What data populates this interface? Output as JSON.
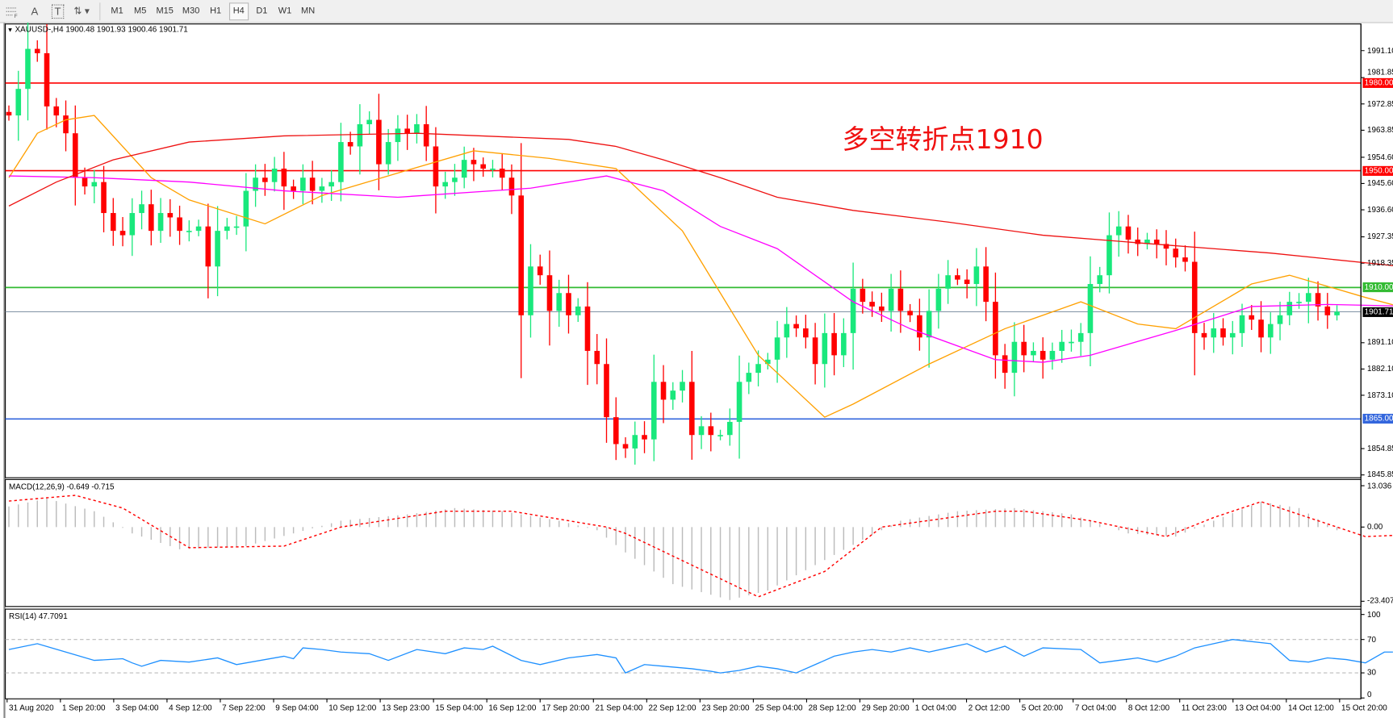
{
  "toolbar": {
    "tools": [
      {
        "icon": "fibonacci-fan-icon"
      },
      {
        "icon": "text-icon",
        "label": "A"
      },
      {
        "icon": "text-label-icon",
        "label": "T"
      },
      {
        "icon": "arrows-icon"
      }
    ],
    "timeframes": [
      "M1",
      "M5",
      "M15",
      "M30",
      "H1",
      "H4",
      "D1",
      "W1",
      "MN"
    ],
    "active_timeframe": "H4"
  },
  "chart_header": "XAUUSD-,H4  1900.48 1901.93 1900.46 1901.71",
  "annotation": "多空转折点1910",
  "colors": {
    "bull": "#19e87c",
    "bear": "#ff0000",
    "ma_fast": "#ffa000",
    "ma_mid": "#ff00ff",
    "ma_slow": "#ee1111",
    "macd_hist": "#bbbbbb",
    "macd_signal": "#ff0000",
    "rsi": "#1e90ff"
  },
  "chart_data": [
    {
      "type": "candlestick",
      "symbol": "XAUUSD-",
      "timeframe": "H4",
      "ylim": [
        1845.85,
        1995
      ],
      "y_ticks": [
        "1991.10",
        "1981.85",
        "1972.85",
        "1963.85",
        "1954.60",
        "1945.60",
        "1936.60",
        "1927.35",
        "1918.35",
        "1891.10",
        "1882.10",
        "1873.10",
        "1854.85",
        "1845.85"
      ],
      "x_ticks": [
        "31 Aug 2020",
        "1 Sep 20:00",
        "3 Sep 04:00",
        "4 Sep 12:00",
        "7 Sep 22:00",
        "9 Sep 04:00",
        "10 Sep 12:00",
        "13 Sep 23:00",
        "15 Sep 04:00",
        "16 Sep 12:00",
        "17 Sep 20:00",
        "21 Sep 04:00",
        "22 Sep 12:00",
        "23 Sep 20:00",
        "25 Sep 04:00",
        "28 Sep 12:00",
        "29 Sep 20:00",
        "1 Oct 04:00",
        "2 Oct 12:00",
        "5 Oct 20:00",
        "7 Oct 04:00",
        "8 Oct 12:00",
        "11 Oct 23:00",
        "13 Oct 04:00",
        "14 Oct 12:00",
        "15 Oct 20:00"
      ],
      "last_ohlc": {
        "open": 1900.48,
        "high": 1901.93,
        "low": 1900.46,
        "close": 1901.71
      },
      "current_price": "1901.71",
      "closes": [
        1968.9,
        1978.0,
        1991.7,
        1990.2,
        1972.0,
        1968.9,
        1962.8,
        1947.6,
        1944.6,
        1946.1,
        1935.5,
        1929.4,
        1927.9,
        1935.5,
        1938.5,
        1929.4,
        1935.5,
        1934.0,
        1929.4,
        1929.4,
        1930.9,
        1917.2,
        1929.4,
        1930.9,
        1930.9,
        1943.1,
        1947.6,
        1946.1,
        1950.7,
        1944.6,
        1943.1,
        1947.6,
        1943.1,
        1944.6,
        1946.1,
        1959.8,
        1958.3,
        1965.9,
        1967.4,
        1952.2,
        1959.8,
        1964.4,
        1962.8,
        1965.9,
        1958.3,
        1944.6,
        1946.1,
        1947.6,
        1953.7,
        1952.2,
        1950.7,
        1950.7,
        1947.6,
        1941.5,
        1900.5,
        1917.2,
        1914.2,
        1902.0,
        1908.1,
        1900.5,
        1903.5,
        1888.3,
        1883.8,
        1865.6,
        1856.4,
        1854.9,
        1859.5,
        1858.0,
        1877.7,
        1871.6,
        1874.7,
        1877.7,
        1859.5,
        1862.5,
        1859.5,
        1859.5,
        1864.0,
        1877.7,
        1880.8,
        1883.8,
        1885.3,
        1892.9,
        1897.5,
        1896.0,
        1892.9,
        1883.8,
        1894.4,
        1886.8,
        1894.4,
        1909.6,
        1905.1,
        1903.5,
        1902.0,
        1909.6,
        1902.0,
        1900.5,
        1892.9,
        1902.0,
        1909.6,
        1914.2,
        1912.7,
        1911.2,
        1917.2,
        1905.1,
        1886.8,
        1880.8,
        1891.4,
        1886.8,
        1888.3,
        1885.3,
        1888.3,
        1891.4,
        1891.4,
        1894.4,
        1911.2,
        1914.2,
        1927.9,
        1930.9,
        1926.4,
        1924.9,
        1926.4,
        1924.9,
        1923.3,
        1920.3,
        1918.8,
        1894.4,
        1892.9,
        1896.0,
        1892.9,
        1894.4,
        1900.5,
        1899.0,
        1892.9,
        1897.5,
        1900.5,
        1905.1,
        1905.1,
        1908.1,
        1903.5,
        1900.5,
        1901.71
      ],
      "moving_averages": [
        {
          "color_key": "ma_fast",
          "points": [
            [
              0,
              1947.6
            ],
            [
              3,
              1962.8
            ],
            [
              6,
              1967.4
            ],
            [
              9,
              1968.9
            ],
            [
              15,
              1947.6
            ],
            [
              19,
              1940.0
            ],
            [
              27,
              1931.8
            ],
            [
              33,
              1941.5
            ],
            [
              41,
              1949.2
            ],
            [
              49,
              1956.8
            ],
            [
              57,
              1954.2
            ],
            [
              64,
              1950.7
            ],
            [
              71,
              1929.4
            ],
            [
              75,
              1908.1
            ],
            [
              79,
              1886.8
            ],
            [
              83,
              1874.7
            ],
            [
              86,
              1865.6
            ],
            [
              89,
              1870.1
            ],
            [
              97,
              1883.8
            ],
            [
              105,
              1895.9
            ],
            [
              113,
              1905.1
            ],
            [
              119,
              1897.5
            ],
            [
              123,
              1895.9
            ],
            [
              131,
              1911.2
            ],
            [
              135,
              1914.2
            ],
            [
              143,
              1906.6
            ],
            [
              149,
              1901.4
            ]
          ]
        },
        {
          "color_key": "ma_mid",
          "points": [
            [
              0,
              1948.2
            ],
            [
              9,
              1947.6
            ],
            [
              19,
              1946.1
            ],
            [
              29,
              1943.1
            ],
            [
              41,
              1940.9
            ],
            [
              55,
              1944.0
            ],
            [
              63,
              1948.2
            ],
            [
              69,
              1943.1
            ],
            [
              75,
              1930.9
            ],
            [
              81,
              1923.3
            ],
            [
              89,
              1905.1
            ],
            [
              95,
              1895.9
            ],
            [
              104,
              1885.3
            ],
            [
              109,
              1884.4
            ],
            [
              114,
              1886.8
            ],
            [
              123,
              1895.3
            ],
            [
              131,
              1903.5
            ],
            [
              139,
              1904.2
            ],
            [
              149,
              1903.5
            ]
          ]
        },
        {
          "color_key": "ma_slow",
          "points": [
            [
              0,
              1937.9
            ],
            [
              5,
              1946.1
            ],
            [
              11,
              1953.7
            ],
            [
              19,
              1959.8
            ],
            [
              29,
              1961.9
            ],
            [
              43,
              1962.8
            ],
            [
              59,
              1960.7
            ],
            [
              64,
              1958.3
            ],
            [
              69,
              1953.7
            ],
            [
              75,
              1947.6
            ],
            [
              81,
              1940.9
            ],
            [
              89,
              1936.4
            ],
            [
              99,
              1932.4
            ],
            [
              109,
              1927.9
            ],
            [
              121,
              1924.8
            ],
            [
              133,
              1921.8
            ],
            [
              145,
              1917.8
            ],
            [
              149,
              1916.3
            ]
          ]
        }
      ],
      "horizontal_lines": [
        {
          "price": 1980.0,
          "label": "1980.00",
          "color": "#ff0000"
        },
        {
          "price": 1950.0,
          "label": "1950.00",
          "color": "#ff0000"
        },
        {
          "price": 1910.0,
          "label": "1910.00",
          "color": "#33bb33"
        },
        {
          "price": 1865.0,
          "label": "1865.00",
          "color": "#3366dd"
        }
      ]
    },
    {
      "type": "macd",
      "title": "MACD(12,26,9) -0.649 -0.715",
      "ylim": [
        -23.407,
        13.036
      ],
      "y_ticks": [
        "13.036",
        "0.00",
        "-23.407"
      ],
      "histogram_points": [
        [
          0,
          6.5
        ],
        [
          4,
          9
        ],
        [
          9,
          5
        ],
        [
          13,
          -2
        ],
        [
          18,
          -7
        ],
        [
          25,
          -6
        ],
        [
          30,
          -2
        ],
        [
          35,
          2
        ],
        [
          42,
          4
        ],
        [
          47,
          6
        ],
        [
          52,
          5
        ],
        [
          58,
          2
        ],
        [
          62,
          -1
        ],
        [
          65,
          -8
        ],
        [
          70,
          -18
        ],
        [
          76,
          -23
        ],
        [
          80,
          -20
        ],
        [
          85,
          -12
        ],
        [
          90,
          -4
        ],
        [
          94,
          2
        ],
        [
          100,
          5
        ],
        [
          106,
          6
        ],
        [
          112,
          4
        ],
        [
          118,
          -2
        ],
        [
          123,
          -3
        ],
        [
          127,
          2
        ],
        [
          132,
          8
        ],
        [
          136,
          6
        ],
        [
          140,
          -1
        ],
        [
          145,
          -2
        ],
        [
          149,
          -0.6
        ]
      ],
      "signal_points": [
        [
          0,
          8.2
        ],
        [
          7,
          10
        ],
        [
          12,
          6
        ],
        [
          19,
          -6.5
        ],
        [
          29,
          -6
        ],
        [
          35,
          0
        ],
        [
          46,
          5
        ],
        [
          53,
          5
        ],
        [
          63,
          0
        ],
        [
          65,
          -2
        ],
        [
          79,
          -22
        ],
        [
          86,
          -14
        ],
        [
          92,
          0
        ],
        [
          104,
          5
        ],
        [
          107,
          5
        ],
        [
          114,
          2
        ],
        [
          122,
          -3
        ],
        [
          127,
          3
        ],
        [
          132,
          8
        ],
        [
          137,
          3
        ],
        [
          143,
          -3
        ],
        [
          147,
          -2.5
        ],
        [
          149,
          -0.7
        ]
      ]
    },
    {
      "type": "rsi",
      "title": "RSI(14) 47.7091",
      "ylim": [
        0,
        100
      ],
      "y_ticks": [
        "100",
        "70",
        "30",
        "0"
      ],
      "levels": [
        70,
        30
      ],
      "points": [
        [
          0,
          58
        ],
        [
          3,
          65
        ],
        [
          6,
          55
        ],
        [
          9,
          45
        ],
        [
          12,
          47
        ],
        [
          13,
          42
        ],
        [
          14,
          38
        ],
        [
          16,
          45
        ],
        [
          19,
          43
        ],
        [
          22,
          48
        ],
        [
          24,
          40
        ],
        [
          29,
          50
        ],
        [
          30,
          47
        ],
        [
          31,
          60
        ],
        [
          33,
          58
        ],
        [
          35,
          55
        ],
        [
          38,
          53
        ],
        [
          40,
          45
        ],
        [
          43,
          58
        ],
        [
          46,
          53
        ],
        [
          48,
          60
        ],
        [
          50,
          58
        ],
        [
          51,
          62
        ],
        [
          54,
          45
        ],
        [
          56,
          40
        ],
        [
          59,
          48
        ],
        [
          62,
          52
        ],
        [
          64,
          48
        ],
        [
          65,
          30
        ],
        [
          67,
          40
        ],
        [
          69,
          38
        ],
        [
          72,
          35
        ],
        [
          74,
          32
        ],
        [
          75,
          30
        ],
        [
          77,
          33
        ],
        [
          79,
          38
        ],
        [
          81,
          35
        ],
        [
          83,
          30
        ],
        [
          85,
          40
        ],
        [
          87,
          50
        ],
        [
          89,
          55
        ],
        [
          91,
          58
        ],
        [
          93,
          55
        ],
        [
          95,
          60
        ],
        [
          97,
          55
        ],
        [
          99,
          60
        ],
        [
          101,
          65
        ],
        [
          103,
          55
        ],
        [
          105,
          62
        ],
        [
          107,
          50
        ],
        [
          109,
          60
        ],
        [
          113,
          58
        ],
        [
          115,
          42
        ],
        [
          117,
          45
        ],
        [
          119,
          48
        ],
        [
          121,
          43
        ],
        [
          123,
          50
        ],
        [
          125,
          60
        ],
        [
          127,
          65
        ],
        [
          129,
          70
        ],
        [
          133,
          65
        ],
        [
          135,
          45
        ],
        [
          137,
          43
        ],
        [
          139,
          48
        ],
        [
          141,
          46
        ],
        [
          143,
          42
        ],
        [
          145,
          55
        ],
        [
          147,
          55
        ],
        [
          148,
          52
        ],
        [
          149,
          48
        ]
      ]
    }
  ]
}
